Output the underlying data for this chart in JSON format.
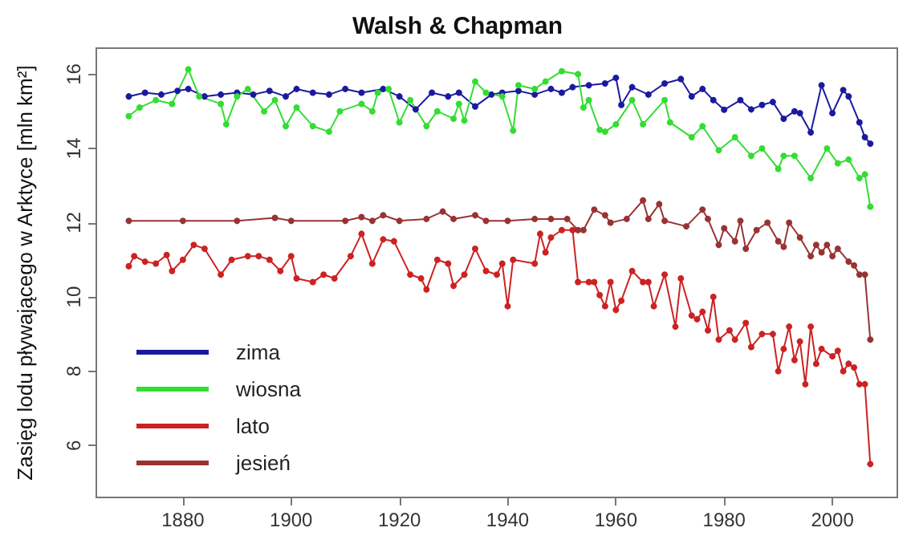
{
  "chart_data": {
    "type": "line",
    "title": "Walsh & Chapman",
    "ylabel": "Zasięg lodu pływającego w Arktyce [mln km²]",
    "xlim": [
      1864,
      2012
    ],
    "xticks": [
      1880,
      1900,
      1920,
      1940,
      1960,
      1980,
      2000
    ],
    "ylim": [
      4.6,
      16.7
    ],
    "yticks": [
      6,
      8,
      10,
      12,
      14,
      16
    ],
    "grid": false,
    "legend": "bottom left",
    "marker": "circle",
    "line_style": "solid",
    "series": [
      {
        "name": "zima",
        "color": "#1a1aa0",
        "x": [
          1870,
          1873,
          1876,
          1879,
          1881,
          1884,
          1887,
          1890,
          1893,
          1896,
          1899,
          1901,
          1904,
          1907,
          1910,
          1913,
          1917,
          1920,
          1923,
          1926,
          1929,
          1931,
          1934,
          1937,
          1939,
          1942,
          1945,
          1948,
          1950,
          1952,
          1955,
          1958,
          1960,
          1961,
          1963,
          1966,
          1969,
          1972,
          1974,
          1976,
          1978,
          1980,
          1983,
          1985,
          1987,
          1989,
          1991,
          1993,
          1994,
          1996,
          1998,
          2000,
          2002,
          2003,
          2005,
          2006,
          2007
        ],
        "values": [
          15.4,
          15.5,
          15.45,
          15.55,
          15.6,
          15.4,
          15.45,
          15.5,
          15.45,
          15.55,
          15.4,
          15.6,
          15.5,
          15.45,
          15.6,
          15.5,
          15.6,
          15.4,
          15.05,
          15.5,
          15.4,
          15.5,
          15.13,
          15.45,
          15.5,
          15.55,
          15.45,
          15.6,
          15.5,
          15.65,
          15.7,
          15.75,
          15.9,
          15.17,
          15.65,
          15.45,
          15.75,
          15.87,
          15.4,
          15.6,
          15.3,
          15.04,
          15.3,
          15.05,
          15.17,
          15.25,
          14.8,
          15.0,
          14.95,
          14.43,
          15.7,
          14.95,
          15.57,
          15.4,
          14.7,
          14.3,
          14.13
        ]
      },
      {
        "name": "wiosna",
        "color": "#33dd33",
        "x": [
          1870,
          1872,
          1875,
          1878,
          1881,
          1883,
          1887,
          1888,
          1890,
          1892,
          1895,
          1897,
          1899,
          1901,
          1904,
          1907,
          1909,
          1913,
          1915,
          1916,
          1918,
          1920,
          1922,
          1925,
          1927,
          1930,
          1931,
          1932,
          1934,
          1936,
          1939,
          1941,
          1942,
          1945,
          1947,
          1950,
          1953,
          1954,
          1955,
          1957,
          1958,
          1960,
          1963,
          1965,
          1969,
          1970,
          1974,
          1976,
          1979,
          1982,
          1985,
          1987,
          1990,
          1991,
          1993,
          1996,
          1999,
          2001,
          2003,
          2005,
          2006,
          2007
        ],
        "values": [
          14.87,
          15.1,
          15.3,
          15.2,
          16.13,
          15.4,
          15.2,
          14.65,
          15.4,
          15.6,
          15.0,
          15.3,
          14.6,
          15.1,
          14.6,
          14.45,
          15.0,
          15.2,
          15.0,
          15.5,
          15.6,
          14.7,
          15.3,
          14.6,
          15.0,
          14.8,
          15.2,
          14.75,
          15.8,
          15.5,
          15.4,
          14.48,
          15.7,
          15.6,
          15.8,
          16.08,
          16.0,
          15.1,
          15.3,
          14.5,
          14.45,
          14.65,
          15.3,
          14.65,
          15.3,
          14.7,
          14.3,
          14.6,
          13.95,
          14.3,
          13.8,
          14.0,
          13.45,
          13.8,
          13.8,
          13.2,
          14.0,
          13.6,
          13.7,
          13.2,
          13.3,
          12.43
        ]
      },
      {
        "name": "lato",
        "color": "#cc2222",
        "x": [
          1870,
          1871,
          1873,
          1875,
          1877,
          1878,
          1880,
          1882,
          1884,
          1887,
          1889,
          1892,
          1894,
          1896,
          1898,
          1900,
          1901,
          1904,
          1906,
          1908,
          1911,
          1913,
          1915,
          1917,
          1919,
          1922,
          1924,
          1925,
          1927,
          1929,
          1930,
          1932,
          1934,
          1936,
          1938,
          1939,
          1940,
          1941,
          1945,
          1946,
          1947,
          1948,
          1950,
          1952,
          1953,
          1955,
          1956,
          1957,
          1958,
          1959,
          1960,
          1961,
          1963,
          1965,
          1966,
          1967,
          1969,
          1971,
          1972,
          1974,
          1975,
          1976,
          1977,
          1978,
          1979,
          1981,
          1982,
          1984,
          1985,
          1987,
          1989,
          1990,
          1991,
          1992,
          1993,
          1994,
          1995,
          1996,
          1997,
          1998,
          2000,
          2001,
          2002,
          2003,
          2004,
          2005,
          2006,
          2007
        ],
        "values": [
          10.83,
          11.1,
          10.95,
          10.9,
          11.13,
          10.7,
          11.0,
          11.4,
          11.3,
          10.6,
          11.0,
          11.1,
          11.1,
          11.0,
          10.7,
          11.1,
          10.5,
          10.4,
          10.6,
          10.5,
          11.1,
          11.7,
          10.9,
          11.55,
          11.5,
          10.6,
          10.5,
          10.2,
          11.0,
          10.9,
          10.3,
          10.6,
          11.3,
          10.7,
          10.6,
          10.9,
          9.75,
          11.0,
          10.9,
          11.7,
          11.2,
          11.6,
          11.8,
          11.8,
          10.4,
          10.4,
          10.4,
          10.05,
          9.75,
          10.4,
          9.65,
          9.9,
          10.7,
          10.4,
          10.4,
          9.75,
          10.6,
          9.2,
          10.5,
          9.5,
          9.4,
          9.6,
          9.1,
          10.0,
          8.85,
          9.1,
          8.85,
          9.3,
          8.65,
          9.0,
          9.0,
          8.0,
          8.6,
          9.2,
          8.3,
          8.8,
          7.65,
          9.2,
          8.2,
          8.6,
          8.4,
          8.55,
          8.0,
          8.2,
          8.1,
          7.65,
          7.65,
          5.5
        ]
      },
      {
        "name": "jesień",
        "color": "#993333",
        "x": [
          1870,
          1880,
          1890,
          1897,
          1900,
          1910,
          1913,
          1915,
          1917,
          1920,
          1925,
          1928,
          1930,
          1934,
          1936,
          1940,
          1945,
          1948,
          1951,
          1953,
          1954,
          1956,
          1958,
          1959,
          1962,
          1965,
          1966,
          1968,
          1969,
          1973,
          1976,
          1977,
          1979,
          1980,
          1982,
          1983,
          1984,
          1986,
          1988,
          1990,
          1991,
          1992,
          1994,
          1996,
          1997,
          1998,
          1999,
          2000,
          2001,
          2003,
          2004,
          2005,
          2006,
          2007
        ],
        "values": [
          12.05,
          12.05,
          12.05,
          12.13,
          12.05,
          12.05,
          12.15,
          12.05,
          12.2,
          12.05,
          12.1,
          12.3,
          12.1,
          12.2,
          12.05,
          12.05,
          12.1,
          12.1,
          12.1,
          11.8,
          11.8,
          12.35,
          12.2,
          12.0,
          12.1,
          12.6,
          12.1,
          12.5,
          12.05,
          11.9,
          12.35,
          12.1,
          11.4,
          11.85,
          11.5,
          12.05,
          11.3,
          11.8,
          12.0,
          11.5,
          11.35,
          12.0,
          11.6,
          11.1,
          11.4,
          11.2,
          11.4,
          11.1,
          11.3,
          10.95,
          10.85,
          10.6,
          10.6,
          8.85
        ]
      }
    ]
  }
}
